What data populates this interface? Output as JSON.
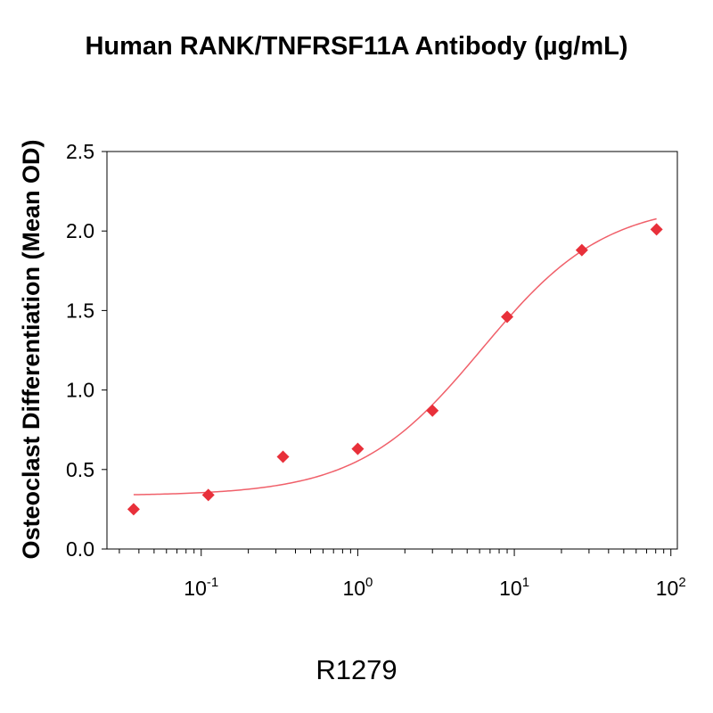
{
  "header": {
    "title": "Human RANK/TNFRSF11A Antibody (µg/mL)"
  },
  "footer": {
    "label": "R1279"
  },
  "chart_data": {
    "type": "scatter",
    "title": "Human RANK/TNFRSF11A Antibody (µg/mL)",
    "xlabel": "",
    "ylabel": "Osteoclast Differentiation (Mean OD)",
    "x_scale": "log",
    "xlim": [
      0.025,
      110
    ],
    "ylim": [
      0.0,
      2.5
    ],
    "grid": false,
    "legend": "none",
    "color": "#e8303a",
    "x_ticks": [
      {
        "base": "10",
        "exp": "-1",
        "value": 0.1
      },
      {
        "base": "10",
        "exp": "0",
        "value": 1
      },
      {
        "base": "10",
        "exp": "1",
        "value": 10
      },
      {
        "base": "10",
        "exp": "2",
        "value": 100
      }
    ],
    "y_ticks": [
      "0.0",
      "0.5",
      "1.0",
      "1.5",
      "2.0",
      "2.5"
    ],
    "series": [
      {
        "marker": "diamond",
        "x": [
          0.037,
          0.111,
          0.333,
          1.0,
          3.0,
          9.0,
          27.0,
          81.0
        ],
        "y": [
          0.25,
          0.34,
          0.58,
          0.63,
          0.87,
          1.46,
          1.88,
          2.01
        ]
      }
    ],
    "fit": {
      "model": "4PL",
      "bottom": 0.335,
      "top": 2.18,
      "ec50": 6.2,
      "hill": 1.1,
      "xrange": [
        0.037,
        81.0
      ]
    }
  }
}
